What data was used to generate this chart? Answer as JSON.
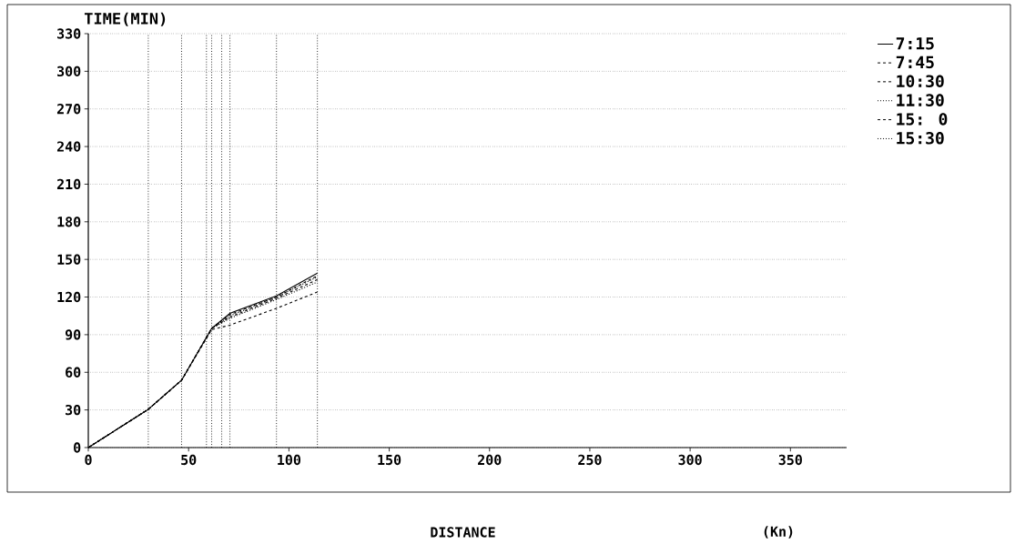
{
  "chart_data": {
    "type": "line",
    "ylabel": "TIME(MIN)",
    "xlabel": "DISTANCE",
    "annotations": [
      "(Kn)"
    ],
    "xlim": [
      0,
      378
    ],
    "xticks": [
      0,
      50,
      100,
      150,
      200,
      250,
      300,
      350
    ],
    "ylim": [
      0,
      330
    ],
    "yticks": [
      0,
      30,
      60,
      90,
      120,
      150,
      180,
      210,
      240,
      270,
      300,
      330
    ],
    "x": [
      0,
      29.9,
      46.5,
      61.5,
      70.6,
      93.8,
      114.2
    ],
    "legend": "top right",
    "grid": "y",
    "series": [
      {
        "name": "7:15",
        "color": "#000000",
        "line_style": "solid",
        "values": [
          0,
          30.5,
          53.7,
          95,
          107,
          121,
          139
        ]
      },
      {
        "name": "7:45",
        "color": "#000000",
        "line_style": "dashed",
        "values": [
          0,
          30.5,
          53.7,
          95,
          106,
          120,
          137
        ]
      },
      {
        "name": "10:30",
        "color": "#000000",
        "line_style": "dashed",
        "values": [
          0,
          30.5,
          53.7,
          94,
          97.6,
          111,
          124
        ]
      },
      {
        "name": "11:30",
        "color": "#000000",
        "line_style": "dotted",
        "values": [
          0,
          30.5,
          53.7,
          95,
          105,
          120,
          136
        ]
      },
      {
        "name": "15: 0",
        "color": "#000000",
        "line_style": "dashed",
        "values": [
          0,
          30.5,
          53.7,
          95,
          104,
          119,
          134
        ]
      },
      {
        "name": "15:30",
        "color": "#000000",
        "line_style": "dotted",
        "values": [
          0,
          30.5,
          53.7,
          95,
          103,
          118,
          132
        ]
      }
    ],
    "ref_lines": [
      {
        "axis": "x",
        "value": 29.9,
        "color": "#000000",
        "line_style": "dotted"
      },
      {
        "axis": "x",
        "value": 46.5,
        "color": "#000000",
        "line_style": "dotted"
      },
      {
        "axis": "x",
        "value": 58.9,
        "color": "#000000",
        "line_style": "dotted"
      },
      {
        "axis": "x",
        "value": 61.5,
        "color": "#000000",
        "line_style": "dotted"
      },
      {
        "axis": "x",
        "value": 66.5,
        "color": "#000000",
        "line_style": "dotted"
      },
      {
        "axis": "x",
        "value": 70.6,
        "color": "#000000",
        "line_style": "dotted"
      },
      {
        "axis": "x",
        "value": 93.8,
        "color": "#000000",
        "line_style": "dotted"
      },
      {
        "axis": "x",
        "value": 114.2,
        "color": "#000000",
        "line_style": "dotted"
      }
    ]
  }
}
